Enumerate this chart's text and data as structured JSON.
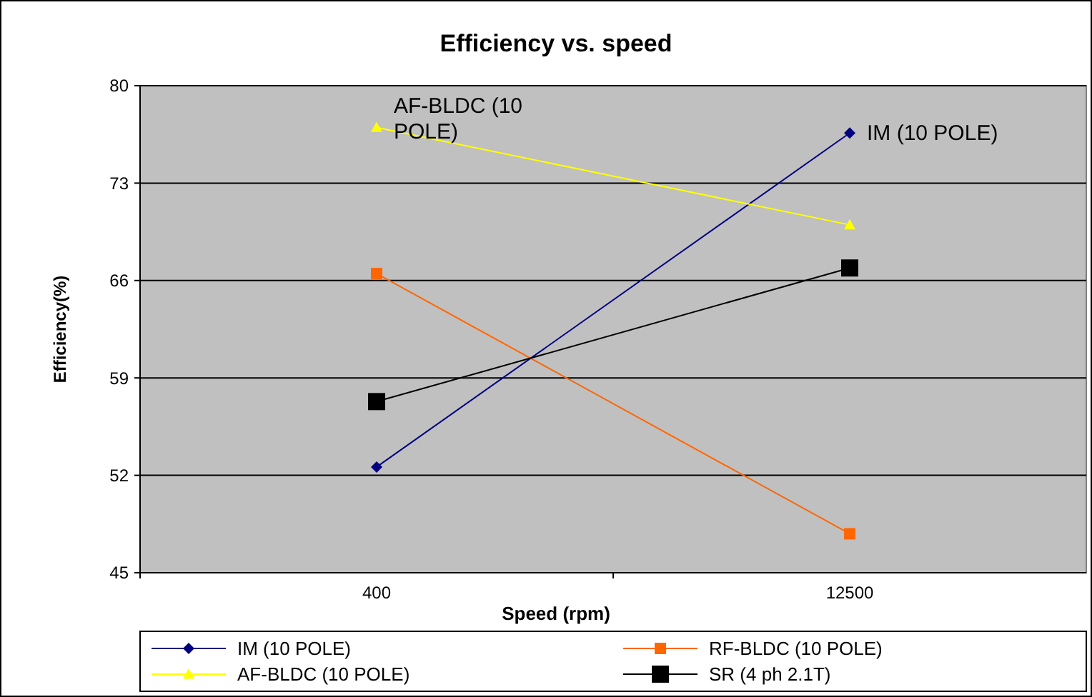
{
  "chart_data": {
    "type": "line",
    "title": "Efficiency vs. speed",
    "xlabel": "Speed (rpm)",
    "ylabel": "Efficiency(%)",
    "categories": [
      "400",
      "12500"
    ],
    "series": [
      {
        "name": "IM (10 POLE)",
        "color": "#000080",
        "values": [
          52.6,
          76.6
        ],
        "marker": "diamond"
      },
      {
        "name": "RF-BLDC (10 POLE)",
        "color": "#ff6600",
        "values": [
          66.5,
          47.8
        ],
        "marker": "square"
      },
      {
        "name": "AF-BLDC (10 POLE)",
        "color": "#ffff00",
        "values": [
          77.0,
          70.0
        ],
        "marker": "triangle"
      },
      {
        "name": "SR (4 ph 2.1T)",
        "color": "#000000",
        "values": [
          57.3,
          66.9
        ],
        "marker": "square"
      }
    ],
    "annotations": [
      {
        "text": "AF-BLDC (10 POLE)",
        "x": "400",
        "y": 77.0
      },
      {
        "text": "IM (10 POLE)",
        "x": "12500",
        "y": 76.6
      }
    ],
    "ylim": [
      45,
      80
    ],
    "yticks": [
      45,
      52,
      59,
      66,
      73,
      80
    ],
    "grid": "y",
    "legend": "bottom"
  }
}
